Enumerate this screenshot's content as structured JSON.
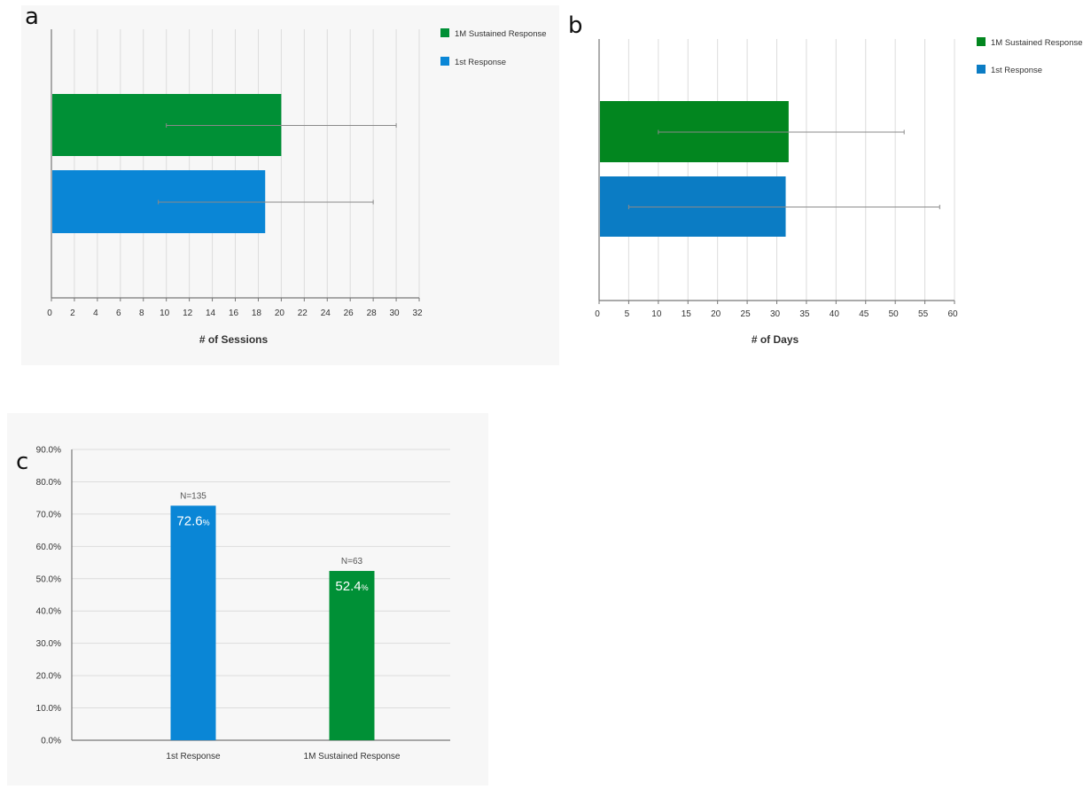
{
  "colors": {
    "green": "#009036",
    "blue": "#0a86d6",
    "blue_b": "#0b7cc4",
    "green_b": "#02861f",
    "grid": "#dcdcdc",
    "axis": "#777777",
    "error": "#8a8a8a"
  },
  "panels": {
    "a": "a",
    "b": "b",
    "c": "c"
  },
  "chart_data": [
    {
      "panel": "a",
      "type": "bar",
      "orientation": "horizontal",
      "xlabel": "# of Sessions",
      "xlim": [
        0,
        32
      ],
      "xticks": [
        0,
        2,
        4,
        6,
        8,
        10,
        12,
        14,
        16,
        18,
        20,
        22,
        24,
        26,
        28,
        30,
        32
      ],
      "legend": [
        "1M Sustained Response",
        "1st Response"
      ],
      "legend_position": "top-right",
      "grid": true,
      "series": [
        {
          "name": "1M Sustained Response",
          "value": 20.0,
          "err_low": 10.0,
          "err_high": 30.0,
          "color": "green"
        },
        {
          "name": "1st Response",
          "value": 18.6,
          "err_low": 9.3,
          "err_high": 28.0,
          "color": "blue"
        }
      ]
    },
    {
      "panel": "b",
      "type": "bar",
      "orientation": "horizontal",
      "xlabel": "# of Days",
      "xlim": [
        0,
        60
      ],
      "xticks": [
        0,
        5,
        10,
        15,
        20,
        25,
        30,
        35,
        40,
        45,
        50,
        55,
        60
      ],
      "legend": [
        "1M Sustained Response",
        "1st Response"
      ],
      "legend_position": "top-right",
      "grid": true,
      "series": [
        {
          "name": "1M Sustained Response",
          "value": 32.0,
          "err_low": 10.0,
          "err_high": 51.5,
          "color": "green_b"
        },
        {
          "name": "1st Response",
          "value": 31.5,
          "err_low": 5.0,
          "err_high": 57.5,
          "color": "blue_b"
        }
      ]
    },
    {
      "panel": "c",
      "type": "bar",
      "orientation": "vertical",
      "ylim": [
        0,
        90
      ],
      "yticks": [
        "0.0%",
        "10.0%",
        "20.0%",
        "30.0%",
        "40.0%",
        "50.0%",
        "60.0%",
        "70.0%",
        "80.0%",
        "90.0%"
      ],
      "grid": true,
      "categories": [
        "1st Response",
        "1M Sustained Response"
      ],
      "values": [
        72.6,
        52.4
      ],
      "value_labels": [
        "72.6",
        "52.4"
      ],
      "value_suffix": "%",
      "n_labels": [
        "N=135",
        "N=63"
      ],
      "colors": [
        "blue",
        "green"
      ]
    }
  ]
}
